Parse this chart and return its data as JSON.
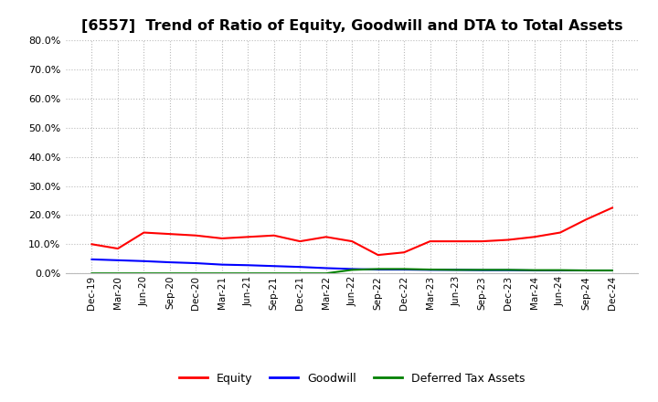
{
  "title": "[6557]  Trend of Ratio of Equity, Goodwill and DTA to Total Assets",
  "title_fontsize": 11.5,
  "background_color": "#ffffff",
  "plot_bg_color": "#ffffff",
  "grid_color": "#bbbbbb",
  "ylim": [
    0.0,
    0.8
  ],
  "yticks": [
    0.0,
    0.1,
    0.2,
    0.3,
    0.4,
    0.5,
    0.6,
    0.7,
    0.8
  ],
  "x_labels": [
    "Dec-19",
    "Mar-20",
    "Jun-20",
    "Sep-20",
    "Dec-20",
    "Mar-21",
    "Jun-21",
    "Sep-21",
    "Dec-21",
    "Mar-22",
    "Jun-22",
    "Sep-22",
    "Dec-22",
    "Mar-23",
    "Jun-23",
    "Sep-23",
    "Dec-23",
    "Mar-24",
    "Jun-24",
    "Sep-24",
    "Dec-24"
  ],
  "equity": [
    0.1,
    0.085,
    0.14,
    0.135,
    0.13,
    0.12,
    0.125,
    0.13,
    0.11,
    0.125,
    0.11,
    0.063,
    0.072,
    0.11,
    0.11,
    0.11,
    0.115,
    0.125,
    0.14,
    0.185,
    0.225
  ],
  "goodwill": [
    0.048,
    0.045,
    0.042,
    0.038,
    0.035,
    0.03,
    0.028,
    0.025,
    0.022,
    0.018,
    0.015,
    0.013,
    0.013,
    0.012,
    0.012,
    0.011,
    0.011,
    0.01,
    0.01,
    0.01,
    0.01
  ],
  "dta": [
    0.0,
    0.0,
    0.0,
    0.0,
    0.0,
    0.0,
    0.0,
    0.0,
    0.0,
    0.0,
    0.012,
    0.015,
    0.015,
    0.013,
    0.012,
    0.012,
    0.012,
    0.011,
    0.011,
    0.01,
    0.01
  ],
  "equity_color": "#ff0000",
  "goodwill_color": "#0000ff",
  "dta_color": "#008000",
  "line_width": 1.5,
  "legend_labels": [
    "Equity",
    "Goodwill",
    "Deferred Tax Assets"
  ]
}
